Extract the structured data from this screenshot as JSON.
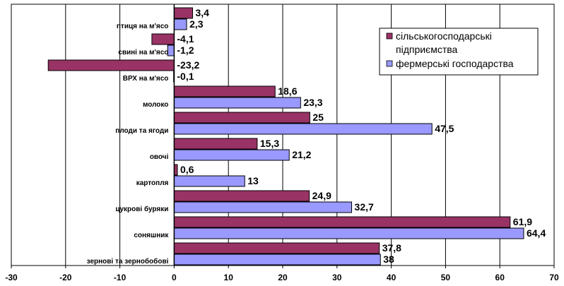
{
  "chart_data": {
    "type": "bar",
    "orientation": "horizontal",
    "categories": [
      "птиця на м'ясо",
      "свині на м'ясо",
      "ВРХ на м'ясо",
      "молоко",
      "плоди та ягоди",
      "овочі",
      "картопля",
      "цукрові буряки",
      "соняшник",
      "зернові та зернобобові"
    ],
    "series": [
      {
        "name": "сільськогосподарські підприємства",
        "color": "#993366",
        "values": [
          3.4,
          -4.1,
          -23.2,
          18.6,
          25,
          15.3,
          0.6,
          24.9,
          61.9,
          37.8
        ],
        "labels": [
          "3,4",
          "-4,1",
          "-23,2",
          "18,6",
          "25",
          "15,3",
          "0,6",
          "24,9",
          "61,9",
          "37,8"
        ]
      },
      {
        "name": "фермерські господарства",
        "color": "#9999ff",
        "values": [
          2.3,
          -1.2,
          -0.1,
          23.3,
          47.5,
          21.2,
          13,
          32.7,
          64.4,
          38
        ],
        "labels": [
          "2,3",
          "-1,2",
          "-0,1",
          "23,3",
          "47,5",
          "21,2",
          "13",
          "32,7",
          "64,4",
          "38"
        ]
      }
    ],
    "xlim": [
      -30,
      70
    ],
    "xticks": [
      -30,
      -20,
      -10,
      0,
      10,
      20,
      30,
      40,
      50,
      60,
      70
    ],
    "grid": true,
    "legend_position": "top-right",
    "title": "",
    "xlabel": "",
    "ylabel": ""
  }
}
